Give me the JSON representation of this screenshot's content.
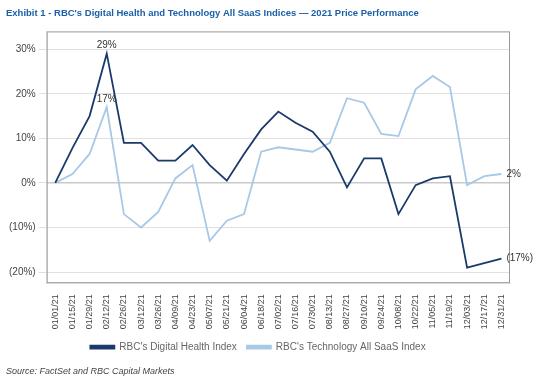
{
  "chart_data": {
    "type": "line",
    "title": "Exhibit 1 - RBC's Digital Health and Technology All SaaS Indices — 2021 Price Performance",
    "source": "Source: FactSet and RBC Capital Markets",
    "categories": [
      "01/01/21",
      "01/15/21",
      "01/29/21",
      "02/12/21",
      "02/26/21",
      "03/12/21",
      "03/26/21",
      "04/09/21",
      "04/23/21",
      "05/07/21",
      "05/21/21",
      "06/04/21",
      "06/18/21",
      "07/02/21",
      "07/16/21",
      "07/30/21",
      "08/13/21",
      "08/27/21",
      "09/10/21",
      "09/24/21",
      "10/08/21",
      "10/22/21",
      "11/05/21",
      "11/19/21",
      "12/03/21",
      "12/17/21",
      "12/31/21"
    ],
    "series": [
      {
        "name": "RBC's Digital Health Index",
        "color": "#1a3a6b",
        "values": [
          0.0,
          0.078,
          0.15,
          0.29,
          0.09,
          0.09,
          0.05,
          0.05,
          0.085,
          0.04,
          0.005,
          0.065,
          0.12,
          0.16,
          0.135,
          0.115,
          0.07,
          -0.01,
          0.055,
          0.055,
          -0.07,
          -0.005,
          0.01,
          0.015,
          -0.19,
          -0.18,
          -0.17
        ]
      },
      {
        "name": "RBC's Technology All SaaS Index",
        "color": "#a8c8e8",
        "values": [
          0.0,
          0.02,
          0.065,
          0.17,
          -0.07,
          -0.1,
          -0.065,
          0.01,
          0.04,
          -0.13,
          -0.085,
          -0.07,
          0.07,
          0.08,
          0.075,
          0.07,
          0.09,
          0.19,
          0.18,
          0.11,
          0.105,
          0.21,
          0.24,
          0.215,
          -0.005,
          0.015,
          0.02
        ]
      }
    ],
    "annotations": [
      {
        "text": "29%",
        "x": "02/12/21",
        "y": 0.29
      },
      {
        "text": "17%",
        "x": "02/12/21",
        "y": 0.17
      },
      {
        "text": "2%",
        "x": "12/31/21",
        "y": 0.02
      },
      {
        "text": "(17%)",
        "x": "12/31/21",
        "y": -0.17
      }
    ],
    "ylim": [
      -0.225,
      0.34
    ],
    "yticks": [
      {
        "value": -0.2,
        "label": "(20%)"
      },
      {
        "value": -0.1,
        "label": "(10%)"
      },
      {
        "value": 0,
        "label": "0%"
      },
      {
        "value": 0.1,
        "label": "10%"
      },
      {
        "value": 0.2,
        "label": "20%"
      },
      {
        "value": 0.3,
        "label": "30%"
      }
    ],
    "grid": true,
    "legend": "bottom"
  }
}
